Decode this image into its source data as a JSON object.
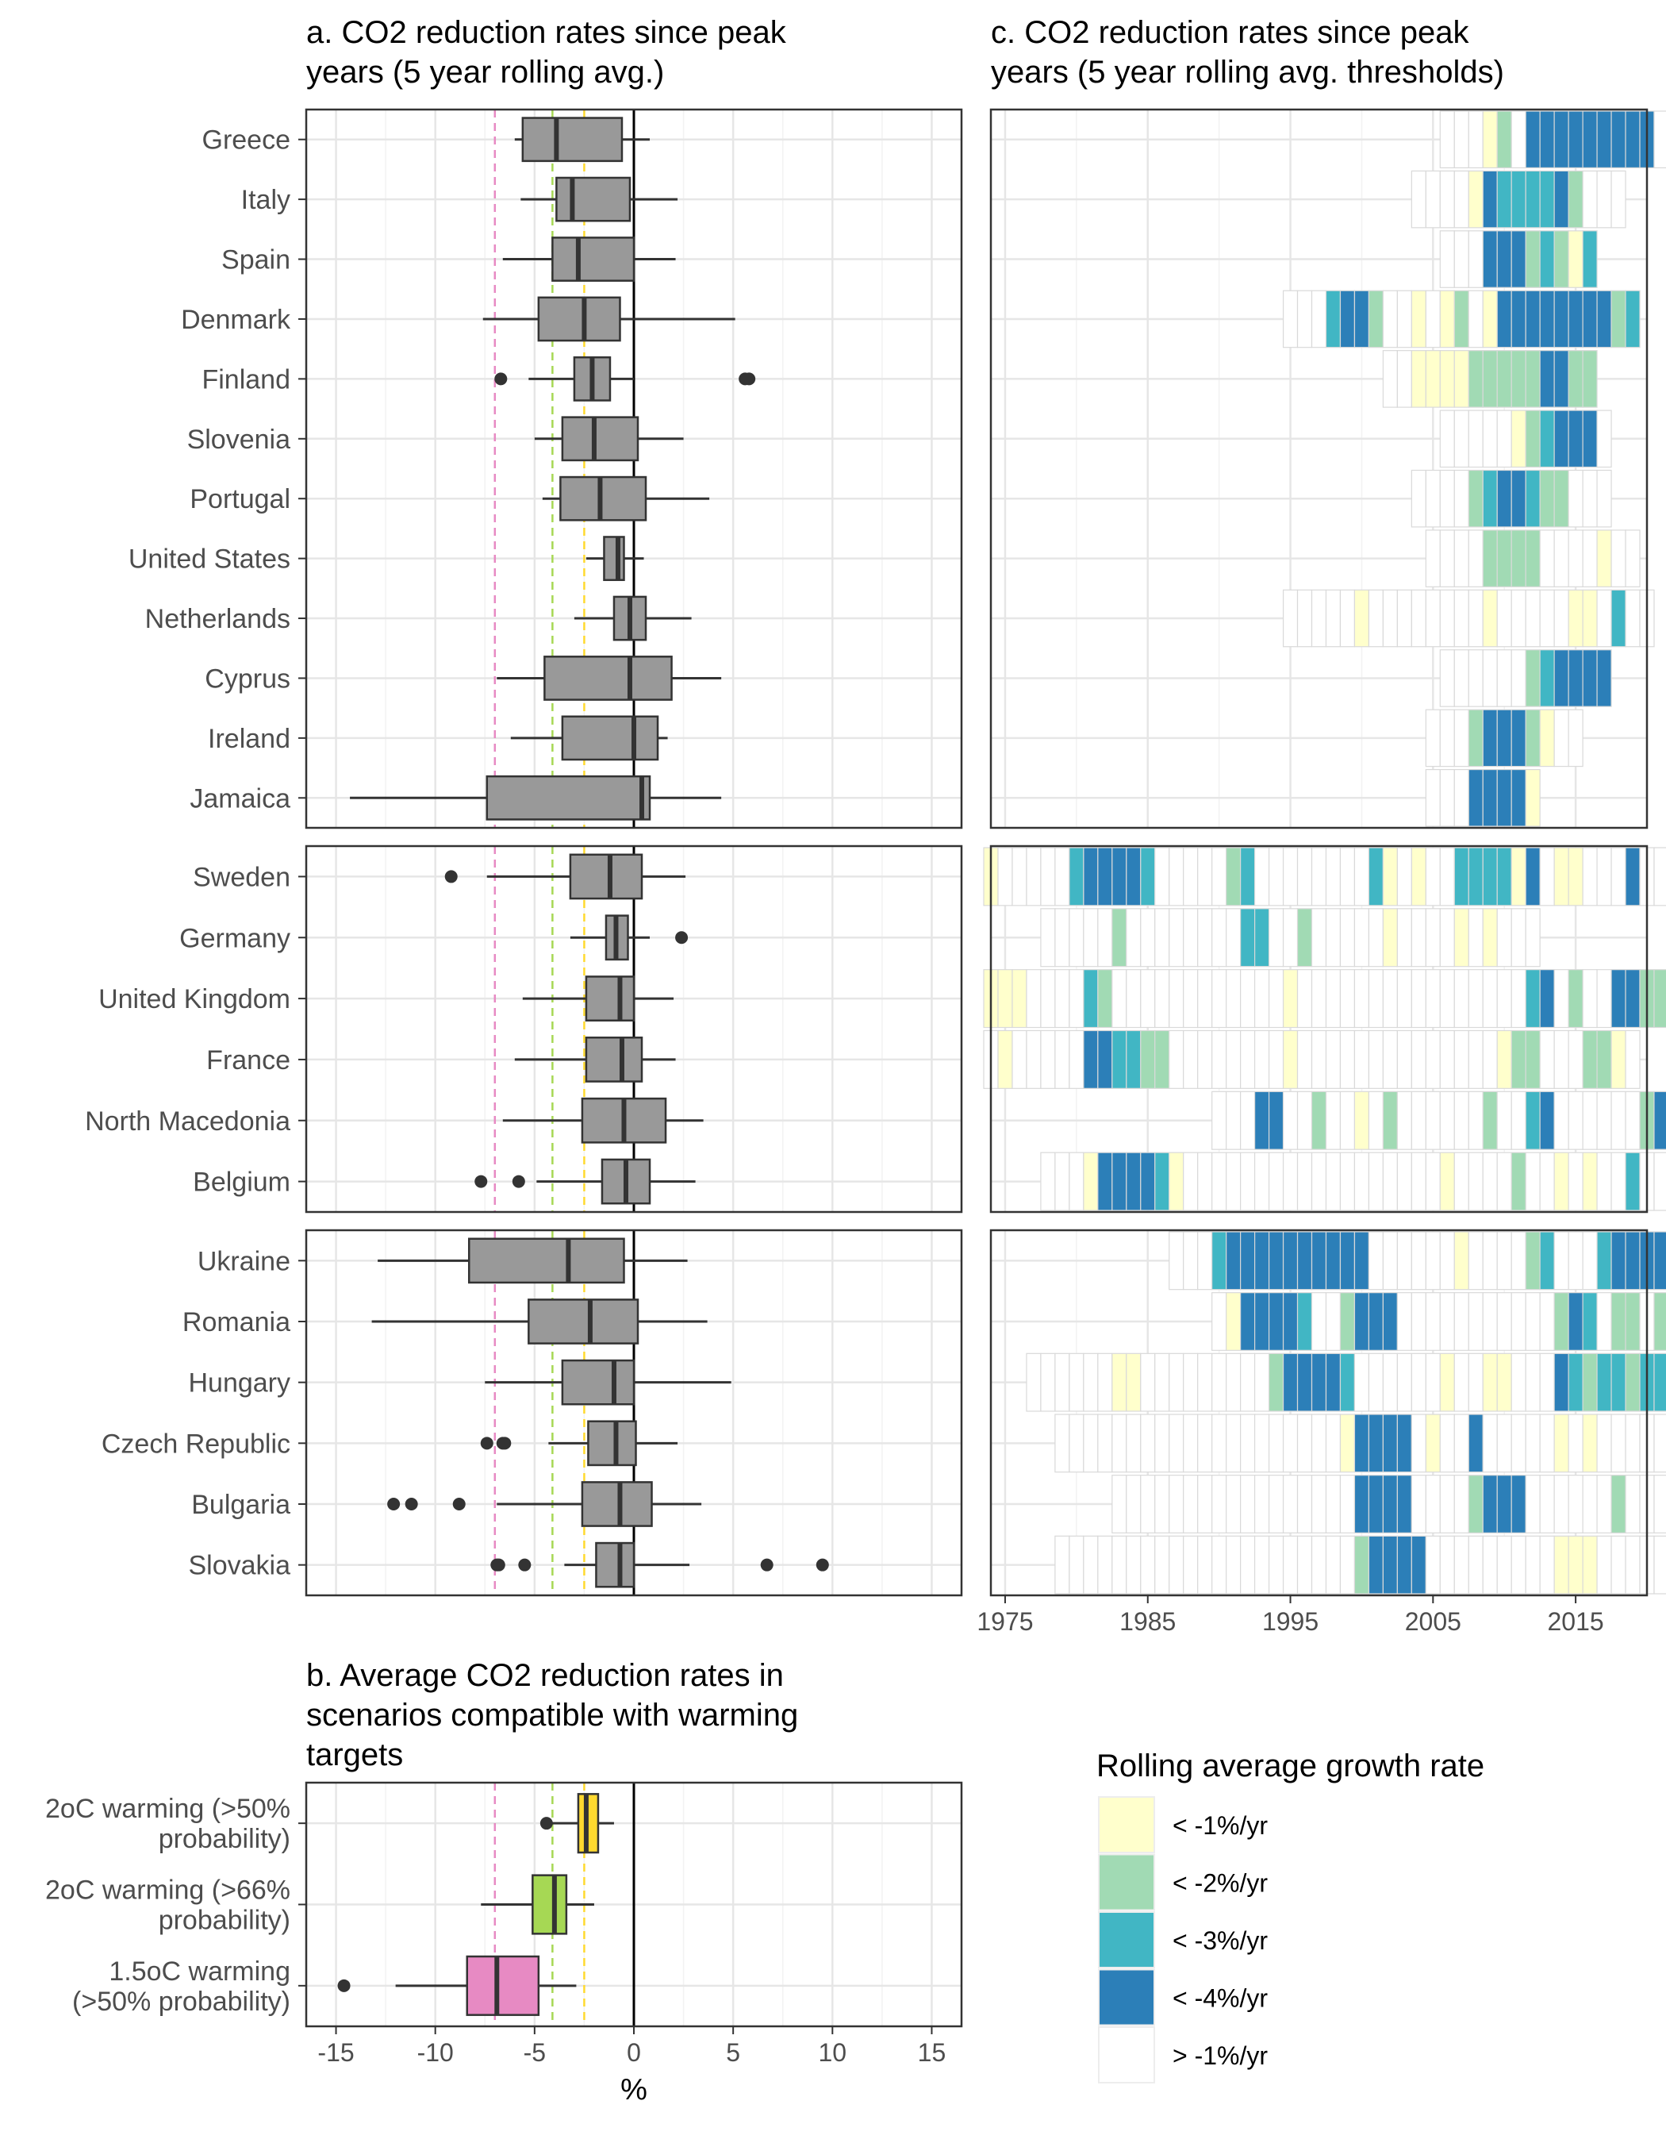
{
  "panel_titles": {
    "a": [
      "a. CO2 reduction rates since peak",
      "years (5 year rolling avg.)"
    ],
    "b": [
      "b. Average CO2 reduction rates in",
      "scenarios compatible with warming",
      "targets"
    ],
    "c": [
      "c. CO2 reduction rates since peak",
      "years (5 year rolling avg. thresholds)"
    ]
  },
  "legend": {
    "title": "Rolling average growth rate",
    "items": [
      {
        "label": "< -1%/yr",
        "color": "#ffffcc"
      },
      {
        "label": "< -2%/yr",
        "color": "#a1dab4"
      },
      {
        "label": "< -3%/yr",
        "color": "#41b6c4"
      },
      {
        "label": "< -4%/yr",
        "color": "#2c7fb8"
      },
      {
        "label": "> -1%/yr",
        "color": "#ffffff"
      }
    ]
  },
  "chart_data": [
    {
      "type": "boxplot",
      "title": "a. CO2 reduction rates since peak years (5 year rolling avg.)",
      "xlim": [
        -16.5,
        16.5
      ],
      "reference_lines": [
        {
          "value": -7,
          "color": "#e78ac3"
        },
        {
          "value": -4.1,
          "color": "#a6d854"
        },
        {
          "value": -2.5,
          "color": "#ffd92f"
        },
        {
          "value": 0,
          "color": "#000000"
        }
      ],
      "groups": [
        {
          "categories": [
            {
              "name": "Greece",
              "whisker_low": -6,
              "q1": -5.6,
              "median": -3.9,
              "q3": -0.6,
              "whisker_high": 0.8,
              "outliers": []
            },
            {
              "name": "Italy",
              "whisker_low": -5.7,
              "q1": -3.9,
              "median": -3.1,
              "q3": -0.2,
              "whisker_high": 2.2,
              "outliers": []
            },
            {
              "name": "Spain",
              "whisker_low": -6.6,
              "q1": -4.1,
              "median": -2.8,
              "q3": 0,
              "whisker_high": 2.1,
              "outliers": []
            },
            {
              "name": "Denmark",
              "whisker_low": -7.6,
              "q1": -4.8,
              "median": -2.5,
              "q3": -0.7,
              "whisker_high": 5.1,
              "outliers": []
            },
            {
              "name": "Finland",
              "whisker_low": -5.3,
              "q1": -3,
              "median": -2.1,
              "q3": -1.2,
              "whisker_high": 0,
              "outliers": [
                -6.7,
                5.6,
                5.8
              ]
            },
            {
              "name": "Slovenia",
              "whisker_low": -5,
              "q1": -3.6,
              "median": -2,
              "q3": 0.2,
              "whisker_high": 2.5,
              "outliers": []
            },
            {
              "name": "Portugal",
              "whisker_low": -4.6,
              "q1": -3.7,
              "median": -1.7,
              "q3": 0.6,
              "whisker_high": 3.8,
              "outliers": []
            },
            {
              "name": "United States",
              "whisker_low": -2.4,
              "q1": -1.5,
              "median": -0.8,
              "q3": -0.5,
              "whisker_high": 0.5,
              "outliers": []
            },
            {
              "name": "Netherlands",
              "whisker_low": -3,
              "q1": -1,
              "median": -0.2,
              "q3": 0.6,
              "whisker_high": 2.9,
              "outliers": []
            },
            {
              "name": "Cyprus",
              "whisker_low": -6.9,
              "q1": -4.5,
              "median": -0.2,
              "q3": 1.9,
              "whisker_high": 4.4,
              "outliers": []
            },
            {
              "name": "Ireland",
              "whisker_low": -6.2,
              "q1": -3.6,
              "median": 0,
              "q3": 1.2,
              "whisker_high": 1.7,
              "outliers": []
            },
            {
              "name": "Jamaica",
              "whisker_low": -14.3,
              "q1": -7.4,
              "median": 0.4,
              "q3": 0.8,
              "whisker_high": 4.4,
              "outliers": []
            }
          ]
        },
        {
          "categories": [
            {
              "name": "Sweden",
              "whisker_low": -7.4,
              "q1": -3.2,
              "median": -1.2,
              "q3": 0.4,
              "whisker_high": 2.6,
              "outliers": [
                -9.2
              ]
            },
            {
              "name": "Germany",
              "whisker_low": -3.2,
              "q1": -1.4,
              "median": -0.9,
              "q3": -0.3,
              "whisker_high": 0.8,
              "outliers": [
                2.4
              ]
            },
            {
              "name": "United Kingdom",
              "whisker_low": -5.6,
              "q1": -2.4,
              "median": -0.7,
              "q3": 0,
              "whisker_high": 2,
              "outliers": []
            },
            {
              "name": "France",
              "whisker_low": -6,
              "q1": -2.4,
              "median": -0.6,
              "q3": 0.4,
              "whisker_high": 2.1,
              "outliers": []
            },
            {
              "name": "North Macedonia",
              "whisker_low": -6.6,
              "q1": -2.6,
              "median": -0.5,
              "q3": 1.6,
              "whisker_high": 3.5,
              "outliers": []
            },
            {
              "name": "Belgium",
              "whisker_low": -4.9,
              "q1": -1.6,
              "median": -0.4,
              "q3": 0.8,
              "whisker_high": 3.1,
              "outliers": [
                -7.7,
                -5.8
              ]
            }
          ]
        },
        {
          "categories": [
            {
              "name": "Ukraine",
              "whisker_low": -12.9,
              "q1": -8.3,
              "median": -3.3,
              "q3": -0.5,
              "whisker_high": 2.7,
              "outliers": []
            },
            {
              "name": "Romania",
              "whisker_low": -13.2,
              "q1": -5.3,
              "median": -2.2,
              "q3": 0.2,
              "whisker_high": 3.7,
              "outliers": []
            },
            {
              "name": "Hungary",
              "whisker_low": -7.5,
              "q1": -3.6,
              "median": -1,
              "q3": 0,
              "whisker_high": 4.9,
              "outliers": []
            },
            {
              "name": "Czech Republic",
              "whisker_low": -4.3,
              "q1": -2.3,
              "median": -0.9,
              "q3": 0.1,
              "whisker_high": 2.2,
              "outliers": [
                -7.4,
                -6.6,
                -6.5
              ]
            },
            {
              "name": "Bulgaria",
              "whisker_low": -6.9,
              "q1": -2.6,
              "median": -0.7,
              "q3": 0.9,
              "whisker_high": 3.4,
              "outliers": [
                -12.1,
                -11.2,
                -8.8
              ]
            },
            {
              "name": "Slovakia",
              "whisker_low": -3.5,
              "q1": -1.9,
              "median": -0.7,
              "q3": 0,
              "whisker_high": 2.8,
              "outliers": [
                -6.9,
                -6.8,
                -5.5,
                6.7,
                9.5
              ]
            }
          ]
        }
      ]
    },
    {
      "type": "boxplot",
      "title": "b. Average CO2 reduction rates in scenarios compatible with warming targets",
      "xlabel": "%",
      "xlim": [
        -16.5,
        16.5
      ],
      "xticks": [
        -15,
        -10,
        -5,
        0,
        5,
        10,
        15
      ],
      "categories": [
        {
          "name": [
            "2oC warming (>50%",
            "probability)"
          ],
          "whisker_low": -4.3,
          "q1": -2.8,
          "median": -2.4,
          "q3": -1.8,
          "whisker_high": -1,
          "outliers": [
            -4.4
          ],
          "fill": "#ffd92f"
        },
        {
          "name": [
            "2oC warming (>66%",
            "probability)"
          ],
          "whisker_low": -7.7,
          "q1": -5.1,
          "median": -4,
          "q3": -3.4,
          "whisker_high": -2,
          "outliers": [],
          "fill": "#a6d854"
        },
        {
          "name": [
            "1.5oC warming",
            "(>50% probability)"
          ],
          "whisker_low": -12,
          "q1": -8.4,
          "median": -6.9,
          "q3": -4.8,
          "whisker_high": -2.9,
          "outliers": [
            -14.6
          ],
          "fill": "#e78ac3"
        }
      ]
    },
    {
      "type": "heatmap",
      "title": "c. CO2 reduction rates since peak years (5 year rolling avg. thresholds)",
      "x_range": [
        1974,
        2020
      ],
      "xticks": [
        1975,
        1985,
        1995,
        2005,
        2015
      ],
      "level_codes": {
        "1": "< -1%/yr",
        "2": "< -2%/yr",
        "3": "< -3%/yr",
        "4": "< -4%/yr",
        "0": "> -1%/yr"
      },
      "groups": [
        {
          "rows": [
            {
              "name": "Greece",
              "start": 2006,
              "levels": "000120444444444000"
            },
            {
              "name": "Italy",
              "start": 2004,
              "levels": "000014333342000"
            },
            {
              "name": "Spain",
              "start": 2006,
              "levels": "00044423213"
            },
            {
              "name": "Denmark",
              "start": 1995,
              "levels": "0003442001012014444444423"
            },
            {
              "name": "Finland",
              "start": 2002,
              "levels": "001111222224422"
            },
            {
              "name": "Slovenia",
              "start": 2006,
              "levels": "000001234440"
            },
            {
              "name": "Portugal",
              "start": 2004,
              "levels": "00002344322000"
            },
            {
              "name": "United States",
              "start": 2005,
              "levels": "000022220000100"
            },
            {
              "name": "Netherlands",
              "start": 1995,
              "levels": "00000100000000100000110300"
            },
            {
              "name": "Cyprus",
              "start": 2006,
              "levels": "000000234444"
            },
            {
              "name": "Ireland",
              "start": 2005,
              "levels": "00024442100"
            },
            {
              "name": "Jamaica",
              "start": 2005,
              "levels": "00044441"
            }
          ]
        },
        {
          "rows": [
            {
              "name": "Sweden",
              "start": 1974,
              "levels": "100000344443000002300000000310100333314011000400"
            },
            {
              "name": "Germany",
              "start": 1978,
              "levels": "00000200000000330020000010000101000"
            },
            {
              "name": "United Kingdom",
              "start": 1974,
              "levels": "11100003200000000000010000000000000000340200442244"
            },
            {
              "name": "France",
              "start": 1974,
              "levels": "0100000443322000000001000000000000001220002210"
            },
            {
              "name": "North Macedonia",
              "start": 1990,
              "levels": "00044002001020000002003400000024420"
            },
            {
              "name": "Belgium",
              "start": 1978,
              "levels": "00014444310000000000000000001000020010100300000"
            }
          ]
        },
        {
          "rows": [
            {
              "name": "Ukraine",
              "start": 1987,
              "levels": "000344444444440000001000023000344444"
            },
            {
              "name": "Romania",
              "start": 1990,
              "levels": "01444430024440000000000024302202"
            },
            {
              "name": "Hungary",
              "start": 1977,
              "levels": "0000001100000000024444300000010011000432332333020"
            },
            {
              "name": "Czech Republic",
              "start": 1979,
              "levels": "0000000000000000000014444010040000010100000120200"
            },
            {
              "name": "Bulgaria",
              "start": 1983,
              "levels": "000000000000000004444000024440000002000000"
            },
            {
              "name": "Slovakia",
              "start": 1979,
              "levels": "000000000000000000000244440000000001110000020000322100"
            }
          ]
        }
      ]
    }
  ]
}
